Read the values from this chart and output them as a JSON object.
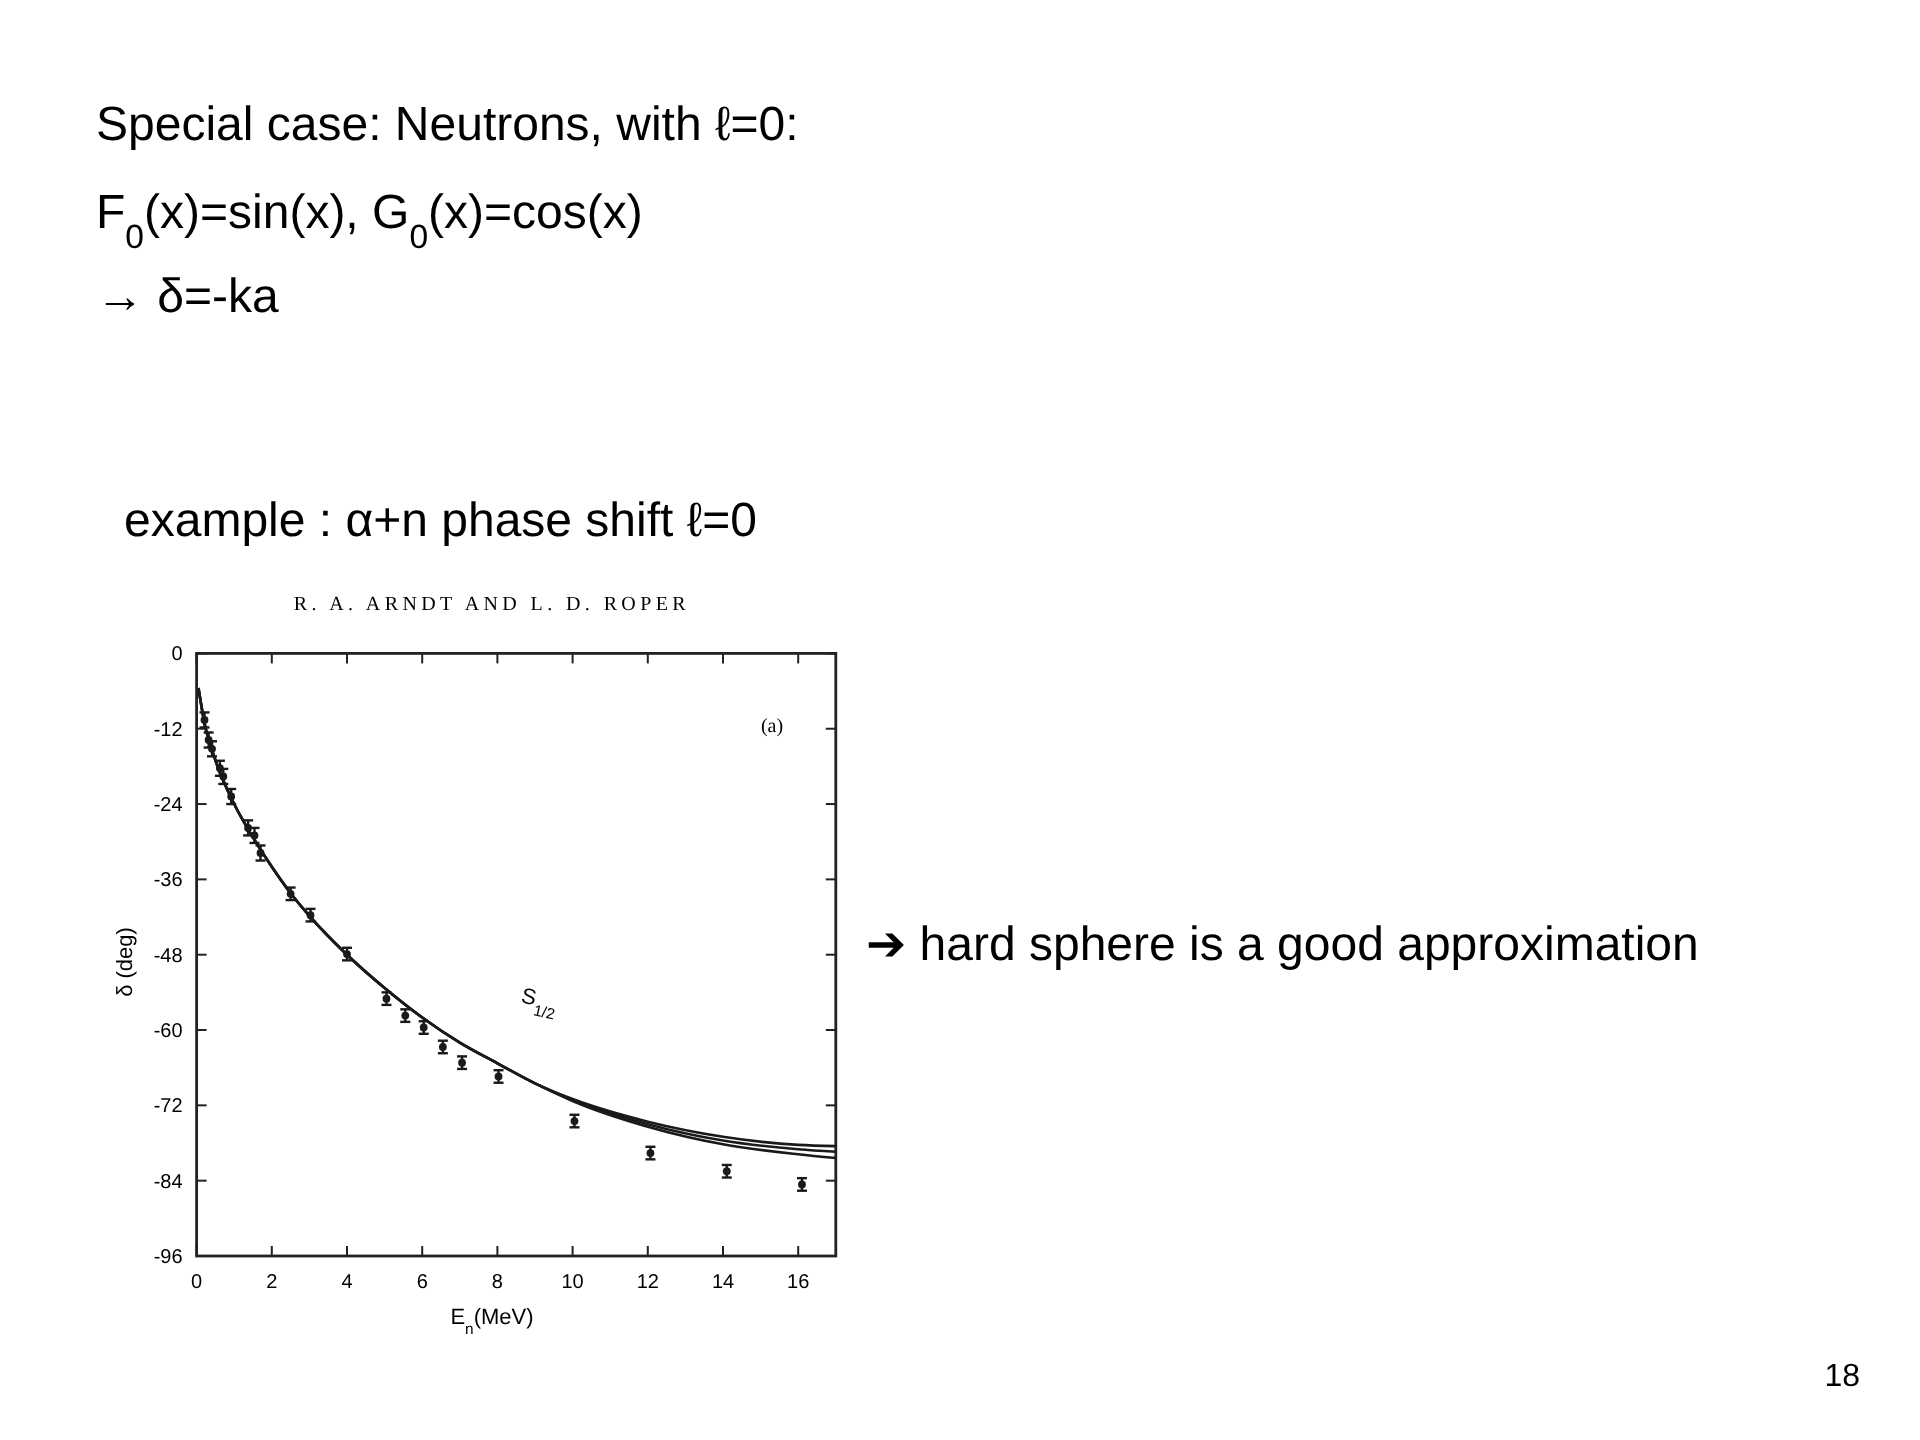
{
  "chart_data": {
    "type": "scatter",
    "title": "example : α+n phase shift ℓ=0",
    "xlabel": "E$_{n}$(MeV)",
    "ylabel": "δ (deg)",
    "xlim": [
      0,
      17
    ],
    "ylim": [
      -96,
      0
    ],
    "xticks": [
      0,
      2,
      4,
      6,
      8,
      10,
      12,
      14,
      16
    ],
    "yticks": [
      -96,
      -84,
      -72,
      -60,
      -48,
      -36,
      -24,
      -12,
      0
    ],
    "series": [
      {
        "color": "#1a1a1a",
        "marker": "circle",
        "x": [
          0.21,
          0.32,
          0.41,
          0.62,
          0.71,
          0.92,
          1.37,
          1.54,
          1.7,
          2.5,
          3.03,
          4.0,
          5.05,
          5.55,
          6.04,
          6.55,
          7.06,
          8.03,
          10.05,
          12.07,
          14.1,
          16.1
        ],
        "values": [
          -10.6,
          -13.8,
          -15.2,
          -18.3,
          -19.6,
          -22.8,
          -27.8,
          -29.0,
          -31.8,
          -38.3,
          -41.7,
          -47.9,
          -55.0,
          -57.7,
          -59.6,
          -62.7,
          -65.2,
          -67.4,
          -74.5,
          -79.6,
          -82.5,
          -84.6
        ],
        "errors": [
          1.2,
          1.2,
          1.2,
          1.2,
          1.2,
          1.2,
          1.2,
          1.2,
          1.2,
          1,
          1,
          1,
          1,
          1,
          1,
          1,
          1,
          1,
          1,
          1,
          1,
          1
        ]
      },
      {
        "type": "line",
        "color": "#1a1a1a",
        "x": [
          0.05,
          0.2,
          0.5,
          1,
          1.5,
          2,
          2.5,
          3,
          4,
          5,
          6,
          7,
          8,
          9,
          10,
          12,
          14,
          16,
          17
        ],
        "values": [
          -5.5,
          -10.8,
          -17,
          -24,
          -29.3,
          -34,
          -38.2,
          -41.8,
          -48,
          -53.3,
          -58,
          -62,
          -65.3,
          -68.5,
          -71,
          -74.6,
          -77,
          -78.3,
          -78.5
        ]
      },
      {
        "type": "line",
        "color": "#1a1a1a",
        "x": [
          0.05,
          0.2,
          0.5,
          1,
          1.5,
          2,
          2.5,
          3,
          4,
          5,
          6,
          7,
          8,
          9,
          10,
          12,
          14,
          16,
          17
        ],
        "values": [
          -5.5,
          -10.8,
          -17,
          -24,
          -29.3,
          -34,
          -38.2,
          -41.8,
          -48,
          -53.3,
          -58,
          -62,
          -65.3,
          -68.5,
          -71.1,
          -75,
          -77.6,
          -79,
          -79.4
        ]
      },
      {
        "type": "line",
        "color": "#1a1a1a",
        "x": [
          0.05,
          0.2,
          0.5,
          1,
          1.5,
          2,
          2.5,
          3,
          4,
          5,
          6,
          7,
          8,
          9,
          10,
          12,
          14,
          16,
          17
        ],
        "values": [
          -5.5,
          -10.8,
          -17,
          -24,
          -29.3,
          -34,
          -38.2,
          -41.8,
          -48,
          -53.3,
          -58,
          -62,
          -65.3,
          -68.5,
          -71.3,
          -75.4,
          -78.2,
          -79.8,
          -80.4
        ]
      }
    ],
    "annotations": [
      "Special case: Neutrons, with ℓ=0:",
      "F$_{0}$(x)=sin(x), G$_{0}$(x)=cos(x)",
      "→ δ=-ka",
      "R. A. ARNDT AND L. D. ROPER",
      "➔ hard sphere is a good approximation",
      "18",
      "S$_{1/2}$",
      "(a)"
    ]
  }
}
